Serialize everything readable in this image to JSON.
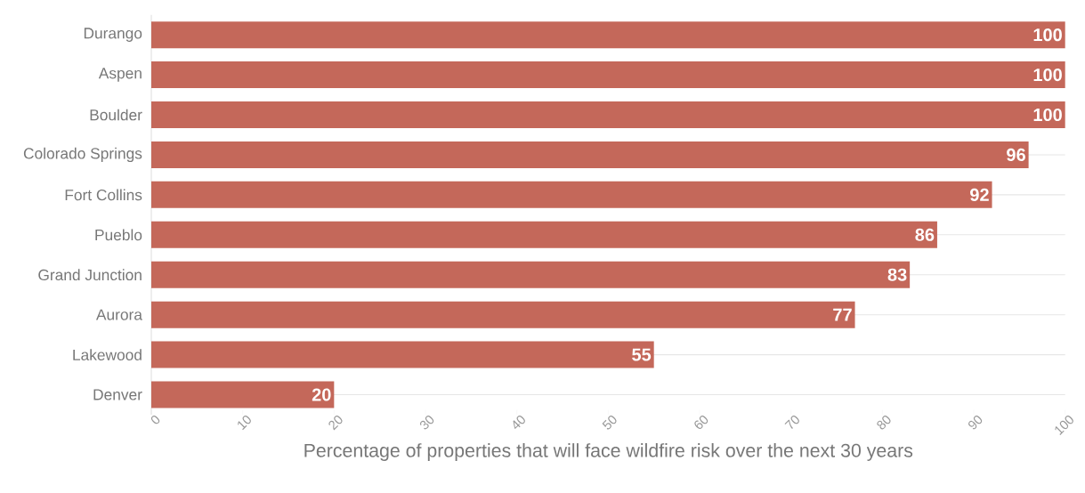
{
  "chart_data": {
    "type": "bar",
    "orientation": "horizontal",
    "categories": [
      "Durango",
      "Aspen",
      "Boulder",
      "Colorado Springs",
      "Fort Collins",
      "Pueblo",
      "Grand Junction",
      "Aurora",
      "Lakewood",
      "Denver"
    ],
    "values": [
      100,
      100,
      100,
      96,
      92,
      86,
      83,
      77,
      55,
      20
    ],
    "color": "#c4685a",
    "xlabel": "Percentage of properties that will face wildfire risk over the next 30 years",
    "xlim": [
      0,
      100
    ],
    "xticks": [
      0,
      10,
      20,
      30,
      40,
      50,
      60,
      70,
      80,
      90,
      100
    ],
    "grid": "y",
    "data_labels": true
  }
}
